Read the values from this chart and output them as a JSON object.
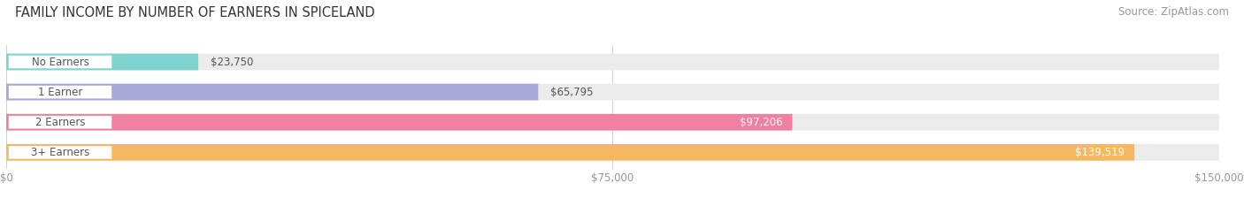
{
  "title": "FAMILY INCOME BY NUMBER OF EARNERS IN SPICELAND",
  "source": "Source: ZipAtlas.com",
  "categories": [
    "No Earners",
    "1 Earner",
    "2 Earners",
    "3+ Earners"
  ],
  "values": [
    23750,
    65795,
    97206,
    139519
  ],
  "bar_colors": [
    "#7dd4ce",
    "#a8a8d8",
    "#f080a0",
    "#f5b860"
  ],
  "bar_bg_color": "#ebebeb",
  "value_labels": [
    "$23,750",
    "$65,795",
    "$97,206",
    "$139,519"
  ],
  "value_inside": [
    false,
    false,
    true,
    true
  ],
  "xlim": [
    0,
    150000
  ],
  "xtick_values": [
    0,
    75000,
    150000
  ],
  "xtick_labels": [
    "$0",
    "$75,000",
    "$150,000"
  ],
  "bg_color": "#ffffff",
  "title_fontsize": 10.5,
  "source_fontsize": 8.5,
  "label_fontsize": 8.5,
  "value_fontsize": 8.5,
  "label_pill_color": "#ffffff",
  "label_text_color": "#555555",
  "value_outside_color": "#555555",
  "value_inside_color": "#ffffff",
  "grid_color": "#d0d0d0",
  "tick_color": "#999999"
}
